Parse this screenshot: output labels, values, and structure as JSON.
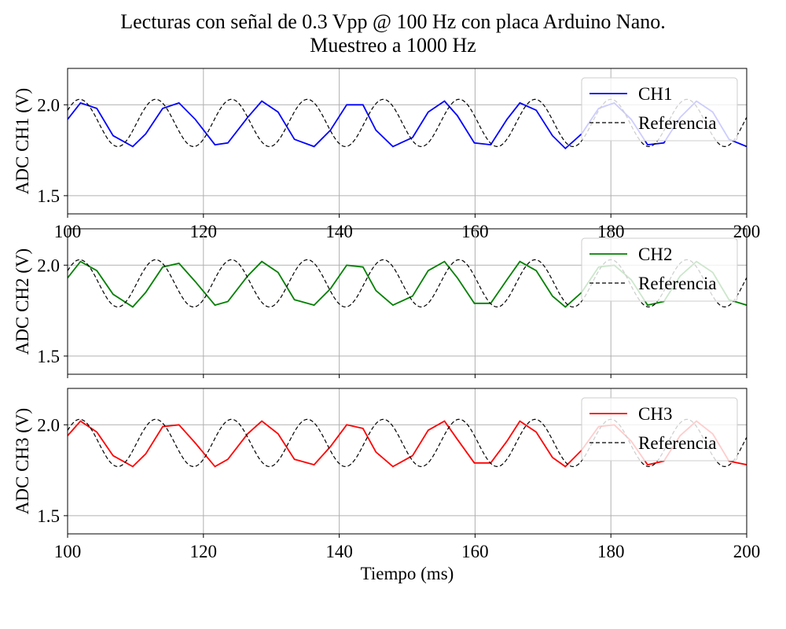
{
  "figure": {
    "title_line1": "Lecturas con señal de 0.3 Vpp @ 100 Hz con placa Arduino Nano.",
    "title_line2": "Muestreo a 1000 Hz",
    "xlabel": "Tiempo (ms)"
  },
  "chart_data": [
    {
      "type": "line",
      "ylabel": "ADC CH1 (V)",
      "xlim": [
        100,
        200
      ],
      "ylim": [
        1.4,
        2.2
      ],
      "xticks": [
        100,
        120,
        140,
        160,
        180,
        200
      ],
      "xtick_labels": [
        "100",
        "120",
        "140",
        "160",
        "180",
        "200"
      ],
      "yticks": [
        1.5,
        2.0
      ],
      "ytick_labels": [
        "1.5",
        "2.0"
      ],
      "grid": true,
      "legend_position": "top-right",
      "series": [
        {
          "name": "CH1",
          "color": "#0000ff",
          "style": "solid",
          "x": [
            100.0,
            101.9,
            104.3,
            106.7,
            109.6,
            111.5,
            114.0,
            116.4,
            118.8,
            121.7,
            123.6,
            126.5,
            128.6,
            131.0,
            133.4,
            136.3,
            138.7,
            141.1,
            143.5,
            145.4,
            147.9,
            150.8,
            153.1,
            155.5,
            157.4,
            159.9,
            162.3,
            164.7,
            166.6,
            169.0,
            171.4,
            173.3,
            175.7,
            178.2,
            180.5,
            183.0,
            185.4,
            187.8,
            190.2,
            192.6,
            195.0,
            197.4,
            200.0
          ],
          "y": [
            1.92,
            2.01,
            1.98,
            1.83,
            1.77,
            1.84,
            1.98,
            2.01,
            1.92,
            1.78,
            1.79,
            1.93,
            2.02,
            1.96,
            1.81,
            1.77,
            1.86,
            2.0,
            2.0,
            1.86,
            1.77,
            1.82,
            1.96,
            2.02,
            1.94,
            1.79,
            1.78,
            1.92,
            2.01,
            1.97,
            1.83,
            1.76,
            1.84,
            1.98,
            2.01,
            1.92,
            1.78,
            1.79,
            1.93,
            2.02,
            1.96,
            1.81,
            1.77
          ]
        },
        {
          "name": "Referencia",
          "color": "#000000",
          "style": "dashed",
          "fn": "sine",
          "offset": 1.9,
          "amplitude": 0.13,
          "frequency_hz": 89.5,
          "phase_deg": 50
        }
      ]
    },
    {
      "type": "line",
      "ylabel": "ADC CH2 (V)",
      "xlim": [
        100,
        200
      ],
      "ylim": [
        1.4,
        2.2
      ],
      "xticks": [
        100,
        120,
        140,
        160,
        180,
        200
      ],
      "xtick_labels": [
        "",
        "",
        "",
        "",
        "",
        ""
      ],
      "yticks": [
        1.5,
        2.0
      ],
      "ytick_labels": [
        "1.5",
        "2.0"
      ],
      "grid": true,
      "legend_position": "top-right",
      "series": [
        {
          "name": "CH2",
          "color": "#008000",
          "style": "solid",
          "x": [
            100.0,
            101.9,
            104.3,
            106.7,
            109.6,
            111.5,
            114.0,
            116.4,
            118.8,
            121.7,
            123.6,
            126.5,
            128.6,
            131.0,
            133.4,
            136.3,
            138.7,
            141.1,
            143.5,
            145.4,
            147.9,
            150.8,
            153.1,
            155.5,
            157.4,
            159.9,
            162.3,
            164.7,
            166.6,
            169.0,
            171.4,
            173.3,
            175.7,
            178.2,
            180.5,
            183.0,
            185.4,
            187.8,
            190.2,
            192.6,
            195.0,
            197.4,
            200.0
          ],
          "y": [
            1.93,
            2.02,
            1.97,
            1.84,
            1.77,
            1.85,
            1.99,
            2.01,
            1.91,
            1.78,
            1.8,
            1.94,
            2.02,
            1.96,
            1.81,
            1.78,
            1.87,
            2.0,
            1.99,
            1.86,
            1.78,
            1.83,
            1.97,
            2.02,
            1.93,
            1.79,
            1.79,
            1.92,
            2.02,
            1.97,
            1.83,
            1.77,
            1.85,
            1.99,
            2.0,
            1.92,
            1.78,
            1.8,
            1.94,
            2.02,
            1.96,
            1.81,
            1.78
          ]
        },
        {
          "name": "Referencia",
          "color": "#000000",
          "style": "dashed",
          "fn": "sine",
          "offset": 1.9,
          "amplitude": 0.13,
          "frequency_hz": 89.5,
          "phase_deg": 50
        }
      ]
    },
    {
      "type": "line",
      "ylabel": "ADC CH3 (V)",
      "xlim": [
        100,
        200
      ],
      "ylim": [
        1.4,
        2.2
      ],
      "xticks": [
        100,
        120,
        140,
        160,
        180,
        200
      ],
      "xtick_labels": [
        "100",
        "120",
        "140",
        "160",
        "180",
        "200"
      ],
      "yticks": [
        1.5,
        2.0
      ],
      "ytick_labels": [
        "1.5",
        "2.0"
      ],
      "grid": true,
      "legend_position": "top-right",
      "series": [
        {
          "name": "CH3",
          "color": "#ff0000",
          "style": "solid",
          "x": [
            100.0,
            101.9,
            104.3,
            106.7,
            109.6,
            111.5,
            114.0,
            116.4,
            118.8,
            121.7,
            123.6,
            126.5,
            128.6,
            131.0,
            133.4,
            136.3,
            138.7,
            141.1,
            143.5,
            145.4,
            147.9,
            150.8,
            153.1,
            155.5,
            157.4,
            159.9,
            162.3,
            164.7,
            166.6,
            169.0,
            171.4,
            173.3,
            175.7,
            178.2,
            180.5,
            183.0,
            185.4,
            187.8,
            190.2,
            192.6,
            195.0,
            197.4,
            200.0
          ],
          "y": [
            1.94,
            2.02,
            1.96,
            1.83,
            1.77,
            1.84,
            1.99,
            2.0,
            1.9,
            1.77,
            1.81,
            1.95,
            2.02,
            1.95,
            1.81,
            1.78,
            1.88,
            2.0,
            1.98,
            1.85,
            1.77,
            1.83,
            1.97,
            2.02,
            1.92,
            1.79,
            1.79,
            1.91,
            2.02,
            1.96,
            1.82,
            1.77,
            1.86,
            1.99,
            2.0,
            1.91,
            1.78,
            1.8,
            1.94,
            2.02,
            1.95,
            1.8,
            1.78
          ]
        },
        {
          "name": "Referencia",
          "color": "#000000",
          "style": "dashed",
          "fn": "sine",
          "offset": 1.9,
          "amplitude": 0.13,
          "frequency_hz": 89.5,
          "phase_deg": 50
        }
      ]
    }
  ]
}
